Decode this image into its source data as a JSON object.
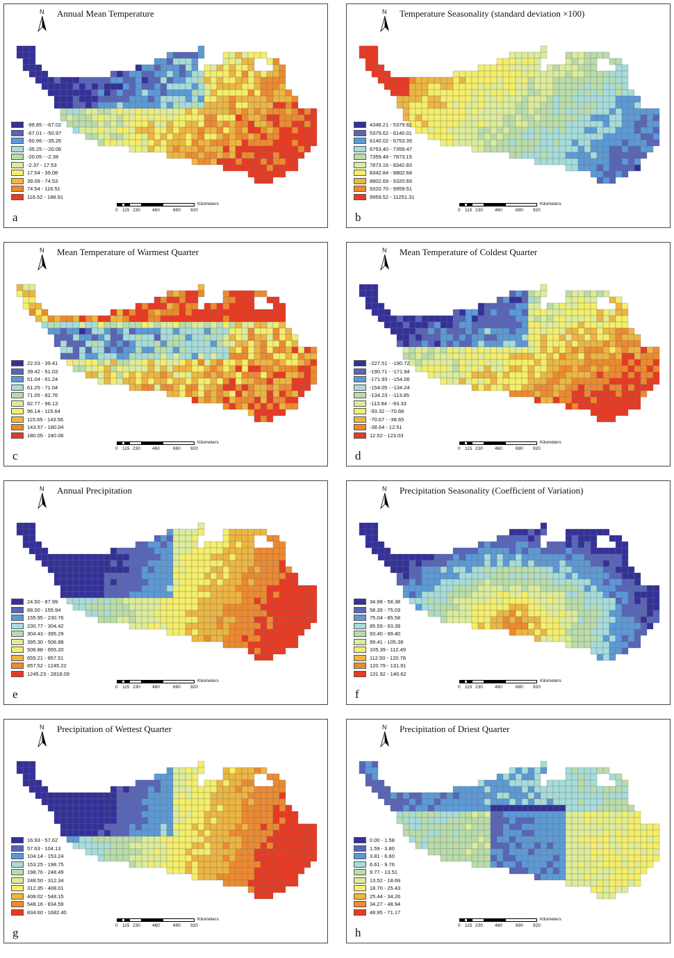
{
  "scale": {
    "ticks": [
      "0",
      "115",
      "230",
      "460",
      "690",
      "920"
    ],
    "unit": "Kilometers"
  },
  "north_label": "N",
  "colors": [
    "#34309b",
    "#5865b8",
    "#5b9ad6",
    "#a6dcd9",
    "#b9dcaa",
    "#dcec9a",
    "#f4ee6a",
    "#edb641",
    "#ed8a2f",
    "#e83a23"
  ],
  "panels": [
    {
      "title": "Annual Mean Temperature",
      "letter": "a",
      "legend": [
        "-99.85 - -67.02",
        "-67.01 - -50.97",
        "-50.96 - -35.26",
        "-35.25 - -20.06",
        "-20.05 - -2.38",
        "-2.37 - 17.53",
        "17.54 - 39.08",
        "39.09 - 74.53",
        "74.54 - 116.51",
        "116.52 - 188.91"
      ]
    },
    {
      "title": "Temperature Seasonality (standard deviation ×100)",
      "letter": "b",
      "legend": [
        "4346.21 - 5379.61",
        "5379.62 - 6140.01",
        "6140.02 - 6753.39",
        "6753.40 - 7359.47",
        "7359.48 - 7873.15",
        "7873.16 - 8342.83",
        "8342.84 - 8802.68",
        "8802.69 - 9320.69",
        "9320.70 - 9959.51",
        "9959.52 - 11251.31"
      ]
    },
    {
      "title": "Mean Temperature of Warmest Quarter",
      "letter": "c",
      "legend": [
        "22.03 - 39.41",
        "39.42 - 51.03",
        "51.04 - 61.24",
        "61.25 - 71.04",
        "71.05 - 82.76",
        "82.77 - 96.13",
        "96.14 - 115.64",
        "115.65 - 143.56",
        "143.57 - 180.04",
        "180.05 - 240.06"
      ]
    },
    {
      "title": "Mean Temperature of Coldest Quarter",
      "letter": "d",
      "legend": [
        "-227.51 - -190.72",
        "-190.71 - -171.94",
        "-171.93 - -154.06",
        "-154.05 - -134.24",
        "-134.23 - -113.85",
        "-113.84 - -93.33",
        "-93.32 - -70.68",
        "-70.67 - -38.65",
        "-38.64 - 12.51",
        "12.52 - 123.03"
      ]
    },
    {
      "title": "Annual Precipitation",
      "letter": "e",
      "legend": [
        "24.50 - 87.99",
        "88.00 - 155.94",
        "155.95 - 230.76",
        "230.77 - 304.42",
        "304.43 - 395.29",
        "395.30 - 506.88",
        "506.88 - 655.20",
        "655.21 - 857.51",
        "857.52 - 1245.22",
        "1245.23 - 2818.09"
      ]
    },
    {
      "title": "Precipitation Seasonality (Coefficient of Variation)",
      "letter": "f",
      "legend": [
        "34.98 - 58.38",
        "58.39 - 75.03",
        "75.04 - 85.58",
        "85.59 - 93.39",
        "93.40 - 99.40",
        "99.41 - 105.38",
        "105.39 - 112.49",
        "112.50 - 120.78",
        "120.79 - 131.91",
        "131.92 - 146.62"
      ]
    },
    {
      "title": "Precipitation of Wettest Quarter",
      "letter": "g",
      "legend": [
        "16.93 - 57.62",
        "57.63 - 104.13",
        "104.14 - 153.24",
        "153.25 - 198.75",
        "198.76 - 248.49",
        "248.50 - 312.34",
        "312.35 - 408.01",
        "408.02 - 548.15",
        "548.16 - 834.59",
        "834.60 - 1682.40"
      ]
    },
    {
      "title": "Precipitation of Driest Quarter",
      "letter": "h",
      "legend": [
        "0.00 - 1.58",
        "1.59 - 3.80",
        "3.81 - 6.60",
        "6.61 - 9.76",
        "9.77 - 13.51",
        "13.52 - 18.69",
        "18.70 - 25.43",
        "25.44 - 34.26",
        "34.27 - 48.94",
        "48.95 - 71.17"
      ]
    }
  ]
}
